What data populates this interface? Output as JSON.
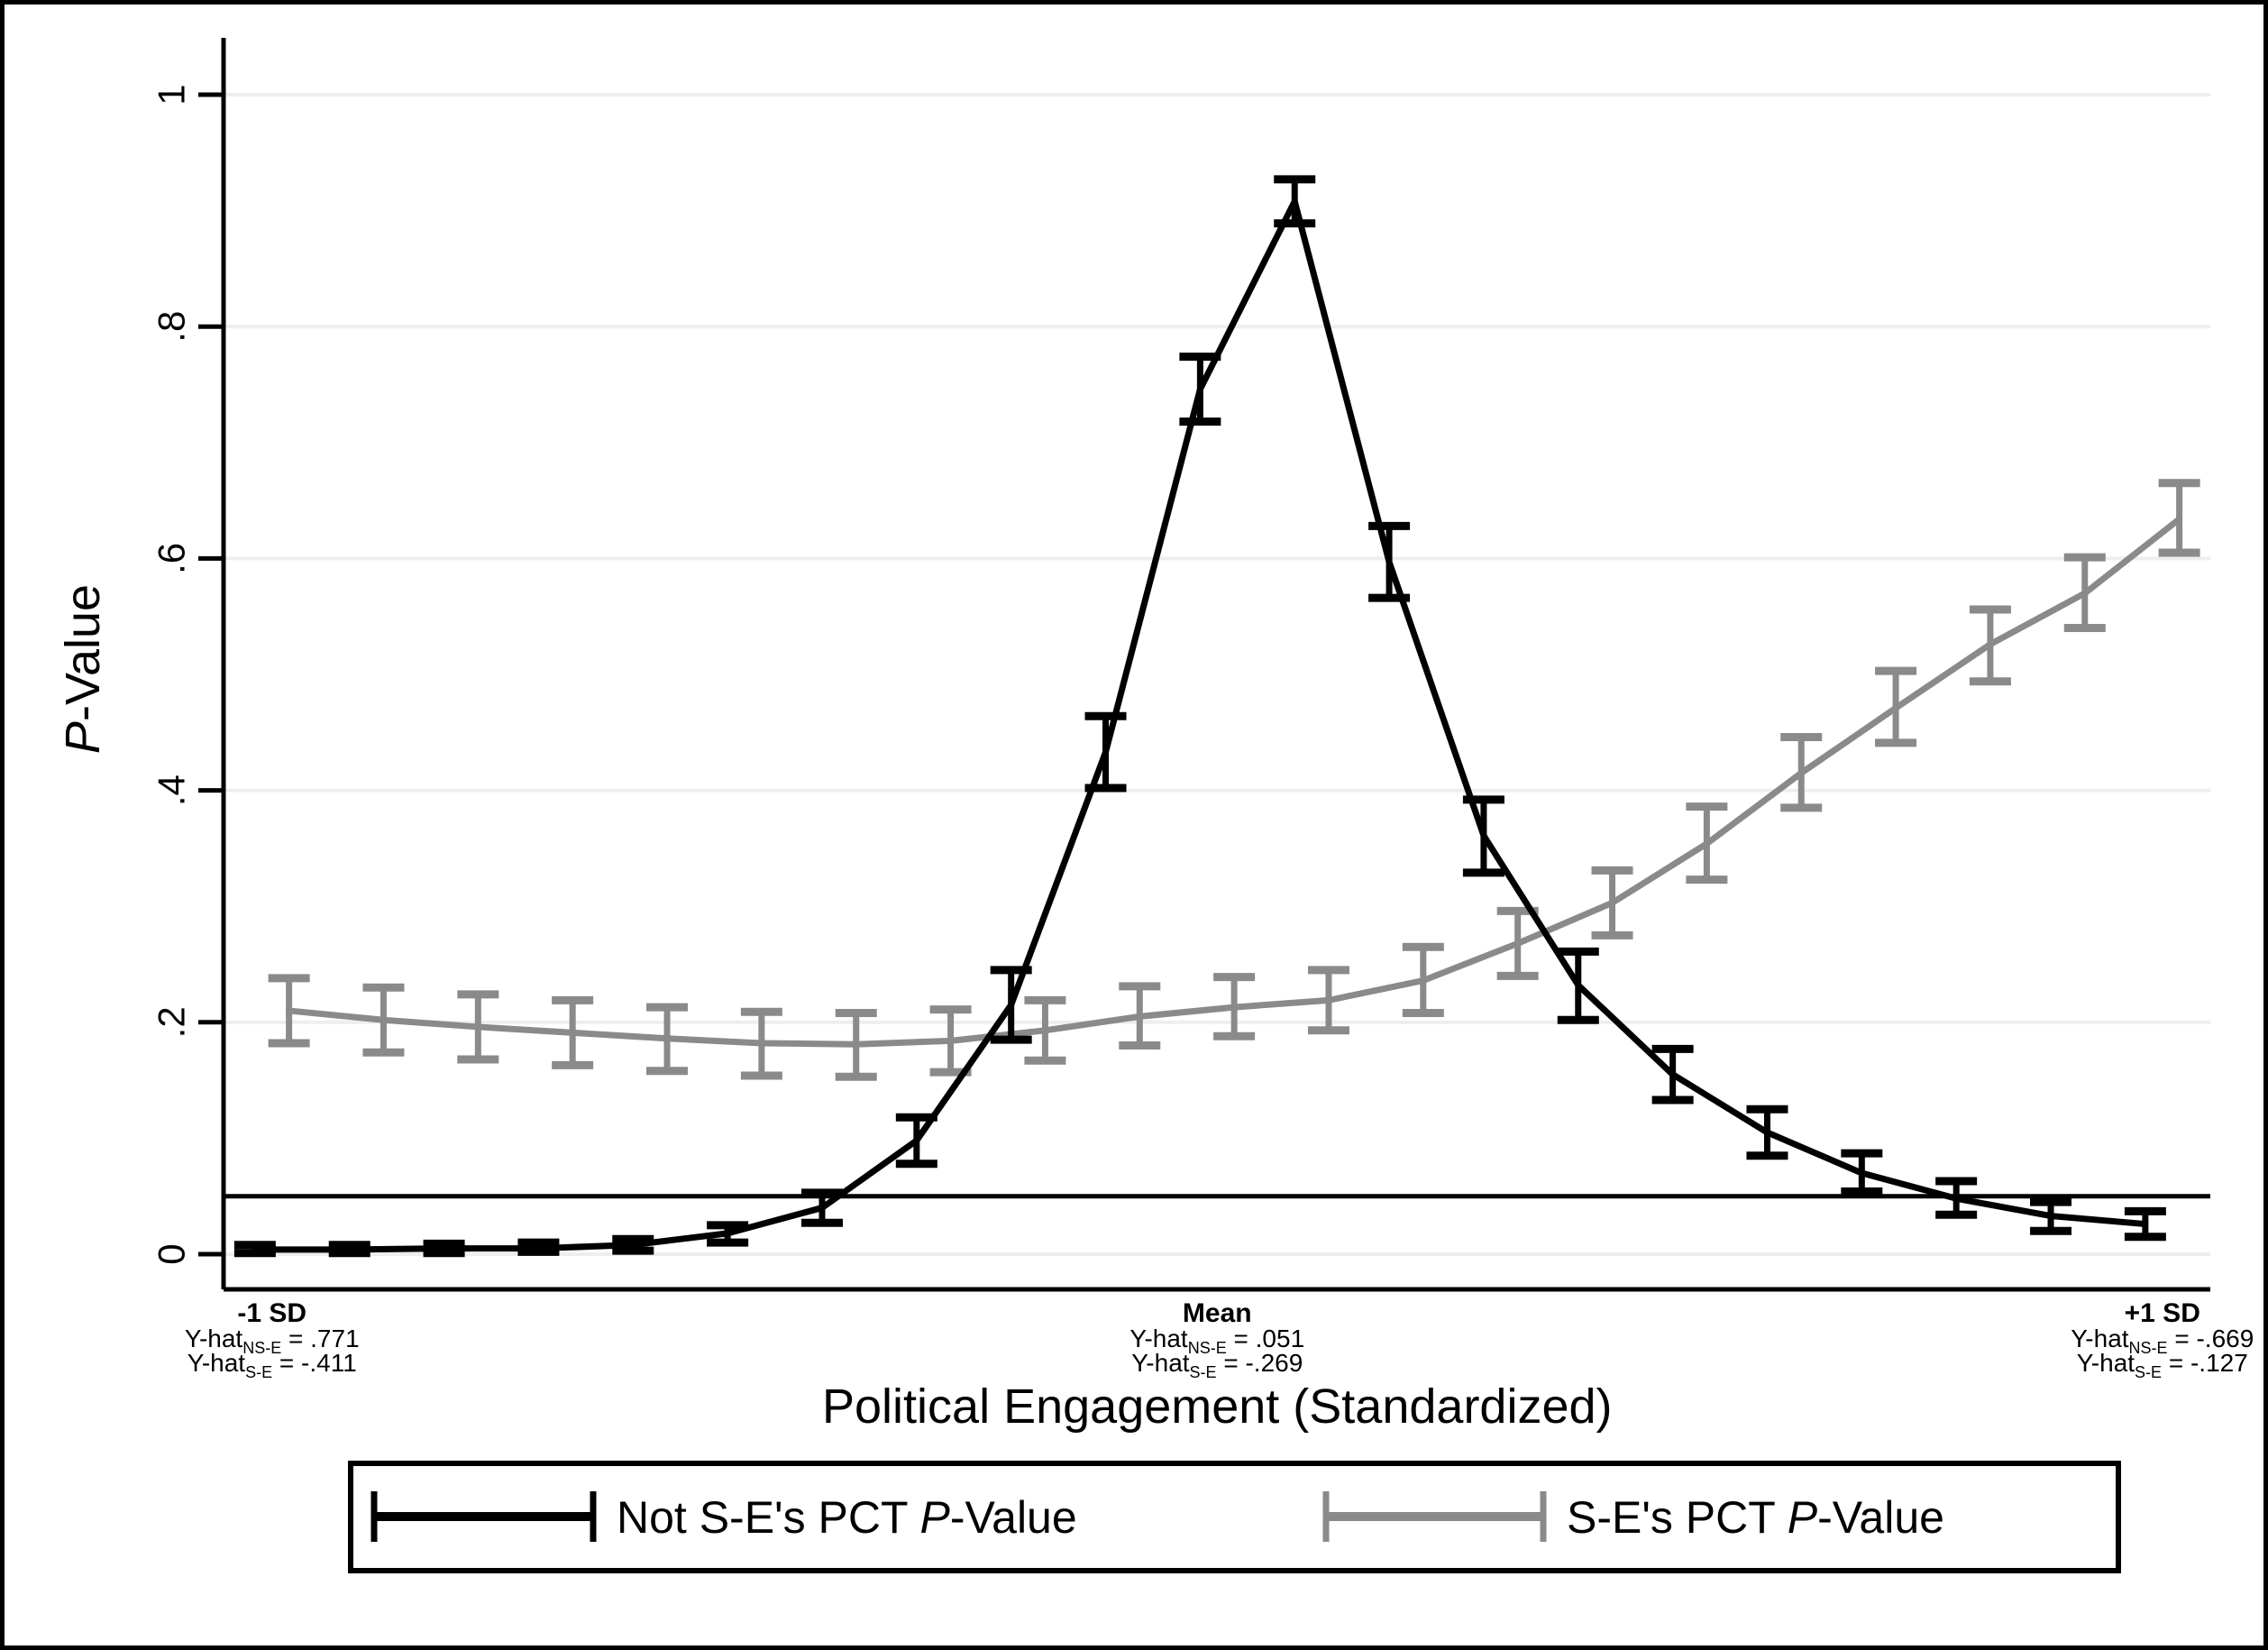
{
  "figure": {
    "background": "#ffffff",
    "frame_color": "#000000"
  },
  "yaxis": {
    "title_italic": "P",
    "title_rest": "-Value",
    "ticks": [
      {
        "label": "0",
        "value": 0
      },
      {
        "label": ".2",
        "value": 0.2
      },
      {
        "label": ".4",
        "value": 0.4
      },
      {
        "label": ".6",
        "value": 0.6
      },
      {
        "label": ".8",
        "value": 0.8
      },
      {
        "label": "1",
        "value": 1
      }
    ]
  },
  "xaxis": {
    "title": "Political Engagement (Standardized)",
    "annotations": [
      {
        "label": "-1 SD",
        "sd": -1,
        "lines": [
          {
            "pre": "Y-hat",
            "sub": "NS-E",
            "post": " = .771"
          },
          {
            "pre": "Y-hat",
            "sub": "S-E",
            "post": " = -.411"
          }
        ]
      },
      {
        "label": "Mean",
        "sd": 0,
        "lines": [
          {
            "pre": "Y-hat",
            "sub": "NS-E",
            "post": " = .051"
          },
          {
            "pre": "Y-hat",
            "sub": "S-E",
            "post": " = -.269"
          }
        ]
      },
      {
        "label": "+1 SD",
        "sd": 1,
        "lines": [
          {
            "pre": "Y-hat",
            "sub": "NS-E",
            "post": " = -.669"
          },
          {
            "pre": "Y-hat",
            "sub": "S-E",
            "post": " = -.127"
          }
        ]
      }
    ]
  },
  "legend": {
    "entries": [
      {
        "pre": "Not S-E's PCT ",
        "it": "P",
        "post": "-Value",
        "color": "#000000"
      },
      {
        "pre": "S-E's PCT ",
        "it": "P",
        "post": "-Value",
        "color": "#8a8a8a"
      }
    ]
  },
  "chart_data": {
    "type": "line",
    "title": "",
    "xlabel": "Political Engagement (Standardized)",
    "ylabel": "P-Value",
    "ylim": [
      0,
      1
    ],
    "grid": true,
    "gridline_color": "#eaeff2",
    "legend_position": "bottom",
    "reference_line_y": 0.05,
    "x": [
      -1.0,
      -0.9,
      -0.8,
      -0.7,
      -0.6,
      -0.5,
      -0.4,
      -0.3,
      -0.2,
      -0.1,
      0.0,
      0.1,
      0.2,
      0.3,
      0.4,
      0.5,
      0.6,
      0.7,
      0.8,
      0.9,
      1.0
    ],
    "x_tick_positions": [
      -1,
      0,
      1
    ],
    "x_tick_labels": [
      "-1 SD",
      "Mean",
      "+1 SD"
    ],
    "series": [
      {
        "name": "S-E's PCT P-Value",
        "color": "#8a8a8a",
        "x_offset": 0.018,
        "values": [
          0.21,
          0.202,
          0.196,
          0.191,
          0.186,
          0.182,
          0.181,
          0.184,
          0.193,
          0.205,
          0.213,
          0.219,
          0.236,
          0.268,
          0.303,
          0.354,
          0.415,
          0.471,
          0.526,
          0.57,
          0.634
        ],
        "ci_low": [
          0.182,
          0.174,
          0.168,
          0.163,
          0.158,
          0.154,
          0.153,
          0.157,
          0.167,
          0.18,
          0.188,
          0.193,
          0.208,
          0.24,
          0.275,
          0.323,
          0.385,
          0.441,
          0.494,
          0.54,
          0.605
        ],
        "ci_high": [
          0.238,
          0.23,
          0.224,
          0.219,
          0.213,
          0.209,
          0.208,
          0.211,
          0.219,
          0.231,
          0.239,
          0.245,
          0.265,
          0.296,
          0.331,
          0.386,
          0.446,
          0.503,
          0.556,
          0.601,
          0.665
        ]
      },
      {
        "name": "Not S-E's PCT P-Value",
        "color": "#000000",
        "x_offset": -0.018,
        "values": [
          0.004,
          0.004,
          0.005,
          0.005,
          0.008,
          0.018,
          0.04,
          0.098,
          0.215,
          0.433,
          0.746,
          0.908,
          0.597,
          0.361,
          0.232,
          0.155,
          0.105,
          0.07,
          0.048,
          0.033,
          0.026
        ],
        "ci_low": [
          0.001,
          0.001,
          0.001,
          0.002,
          0.003,
          0.01,
          0.027,
          0.078,
          0.185,
          0.402,
          0.718,
          0.889,
          0.566,
          0.329,
          0.202,
          0.133,
          0.085,
          0.054,
          0.034,
          0.02,
          0.015
        ],
        "ci_high": [
          0.008,
          0.008,
          0.009,
          0.01,
          0.013,
          0.025,
          0.053,
          0.118,
          0.245,
          0.464,
          0.774,
          0.927,
          0.628,
          0.392,
          0.261,
          0.177,
          0.125,
          0.087,
          0.063,
          0.045,
          0.037
        ]
      }
    ]
  }
}
